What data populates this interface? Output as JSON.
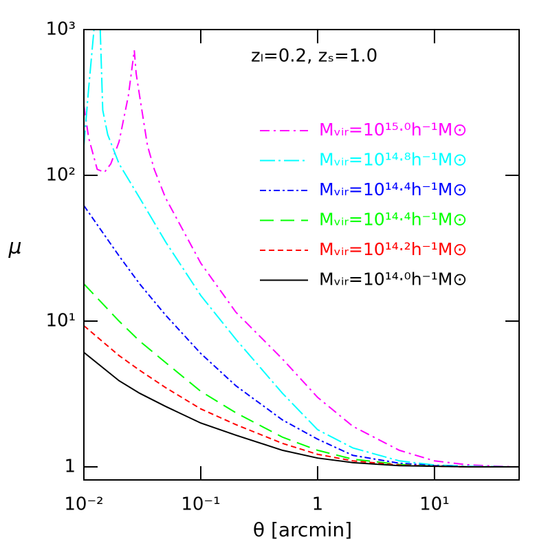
{
  "chart_data": {
    "type": "line",
    "annotation": "zₗ=0.2,  zₛ=1.0",
    "x_label": "θ [arcmin]",
    "y_label": "μ",
    "xscale": "log",
    "yscale": "log",
    "xlim": [
      0.01,
      53
    ],
    "ylim": [
      0.814,
      1000
    ],
    "xticks": [
      {
        "value": 0.01,
        "label": "10⁻²"
      },
      {
        "value": 0.1,
        "label": "10⁻¹"
      },
      1,
      {
        "value": 10,
        "label": "10¹"
      }
    ],
    "yticks": [
      1,
      {
        "value": 10,
        "label": "10¹"
      },
      {
        "value": 100,
        "label": "10²"
      },
      {
        "value": 1000,
        "label": "10³"
      }
    ],
    "legend": "upper right",
    "series": [
      {
        "name": "Mᵥᵢᵣ=10¹⁵·⁰h⁻¹M⊙",
        "color": "#ff00ff",
        "style": "dashdot",
        "x": [
          0.01,
          0.011,
          0.013,
          0.015,
          0.017,
          0.02,
          0.024,
          0.027,
          0.028,
          0.03,
          0.035,
          0.04,
          0.05,
          0.1,
          0.2,
          0.5,
          1,
          2,
          5,
          10,
          20,
          50
        ],
        "values": [
          300,
          180,
          110,
          105,
          120,
          170,
          350,
          720,
          500,
          350,
          160,
          110,
          70,
          25,
          11.5,
          5.5,
          3.0,
          1.9,
          1.3,
          1.1,
          1.03,
          1.0
        ]
      },
      {
        "name": "Mᵥᵢᵣ=10¹⁴·⁸h⁻¹M⊙",
        "color": "#00ffff",
        "style": "longdashdot",
        "x": [
          0.01,
          0.011,
          0.0122,
          0.013,
          0.0138,
          0.0145,
          0.016,
          0.02,
          0.03,
          0.05,
          0.1,
          0.2,
          0.5,
          1,
          2,
          5,
          10,
          20,
          50
        ],
        "values": [
          160,
          400,
          1000,
          null,
          1000,
          280,
          190,
          120,
          70,
          35,
          15,
          7.5,
          3.2,
          1.8,
          1.35,
          1.1,
          1.03,
          1.01,
          1.0
        ]
      },
      {
        "name": "Mᵥᵢᵣ=10¹⁴·⁴h⁻¹M⊙",
        "color": "#0000ff",
        "style": "dotdash",
        "x": [
          0.01,
          0.02,
          0.03,
          0.05,
          0.1,
          0.2,
          0.5,
          1,
          2,
          5,
          10,
          20,
          50
        ],
        "values": [
          62,
          28,
          18,
          11,
          6,
          3.6,
          2.1,
          1.55,
          1.2,
          1.06,
          1.02,
          1.0,
          1.0
        ]
      },
      {
        "name": "Mᵥᵢᵣ=10¹⁴·⁴h⁻¹M⊙",
        "color": "#00ff00",
        "style": "longdash",
        "x": [
          0.01,
          0.02,
          0.03,
          0.05,
          0.1,
          0.2,
          0.5,
          1,
          2,
          5,
          10,
          20,
          50
        ],
        "values": [
          18,
          10,
          7.3,
          5.2,
          3.3,
          2.35,
          1.6,
          1.3,
          1.13,
          1.04,
          1.01,
          1.0,
          1.0
        ]
      },
      {
        "name": "Mᵥᵢᵣ=10¹⁴·²h⁻¹M⊙",
        "color": "#ff0000",
        "style": "shortdash",
        "x": [
          0.01,
          0.02,
          0.03,
          0.05,
          0.1,
          0.2,
          0.5,
          1,
          2,
          5,
          10,
          20,
          50
        ],
        "values": [
          9.3,
          5.8,
          4.6,
          3.5,
          2.5,
          1.95,
          1.45,
          1.22,
          1.1,
          1.03,
          1.01,
          1.0,
          1.0
        ]
      },
      {
        "name": "Mᵥᵢᵣ=10¹⁴·⁰h⁻¹M⊙",
        "color": "#000000",
        "style": "solid",
        "x": [
          0.01,
          0.02,
          0.03,
          0.05,
          0.1,
          0.2,
          0.5,
          1,
          2,
          5,
          10,
          20,
          50
        ],
        "values": [
          6.1,
          3.9,
          3.2,
          2.6,
          2.0,
          1.65,
          1.3,
          1.15,
          1.07,
          1.02,
          1.01,
          1.0,
          1.0
        ]
      }
    ]
  }
}
